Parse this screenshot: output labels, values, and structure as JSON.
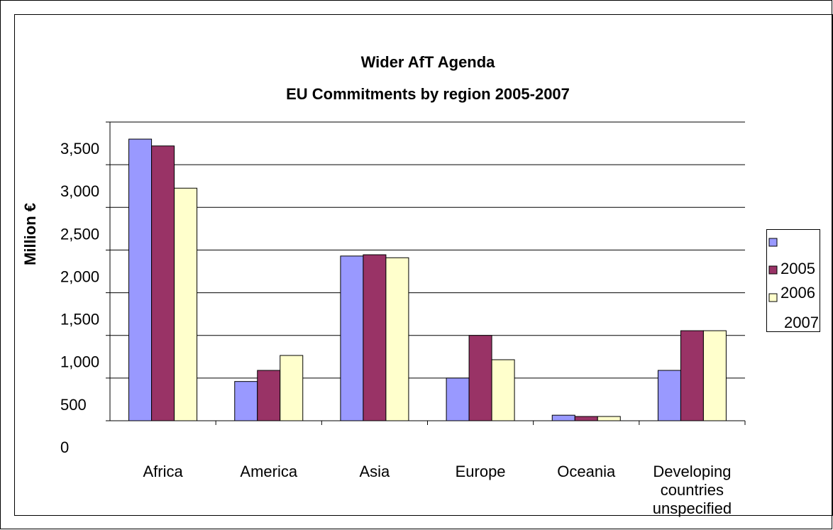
{
  "chart_data": {
    "type": "bar",
    "title": "Wider AfT Agenda",
    "subtitle": "EU Commitments by region 2005-2007",
    "y_label": "Million €",
    "categories": [
      "Africa",
      "America",
      "Asia",
      "Europe",
      "Oceania",
      "Developing countries unspecified"
    ],
    "series": [
      {
        "name": "2005",
        "color": "#9999ff",
        "values": [
          3300,
          460,
          1930,
          500,
          65,
          590
        ]
      },
      {
        "name": "2006",
        "color": "#993366",
        "values": [
          3220,
          590,
          1945,
          1000,
          50,
          1055
        ]
      },
      {
        "name": "2007",
        "color": "#ffffcc",
        "values": [
          2725,
          765,
          1910,
          715,
          50,
          1055
        ]
      }
    ],
    "ylim": [
      0,
      3500
    ],
    "yticks": [
      0,
      500,
      {
        "value": 1000,
        "label": "1,000"
      },
      {
        "value": 1500,
        "label": "1,500"
      },
      {
        "value": 2000,
        "label": "2,000"
      },
      {
        "value": 2500,
        "label": "2,500"
      },
      {
        "value": 3000,
        "label": "3,000"
      },
      {
        "value": 3500,
        "label": "3,500"
      }
    ],
    "grid": true
  }
}
